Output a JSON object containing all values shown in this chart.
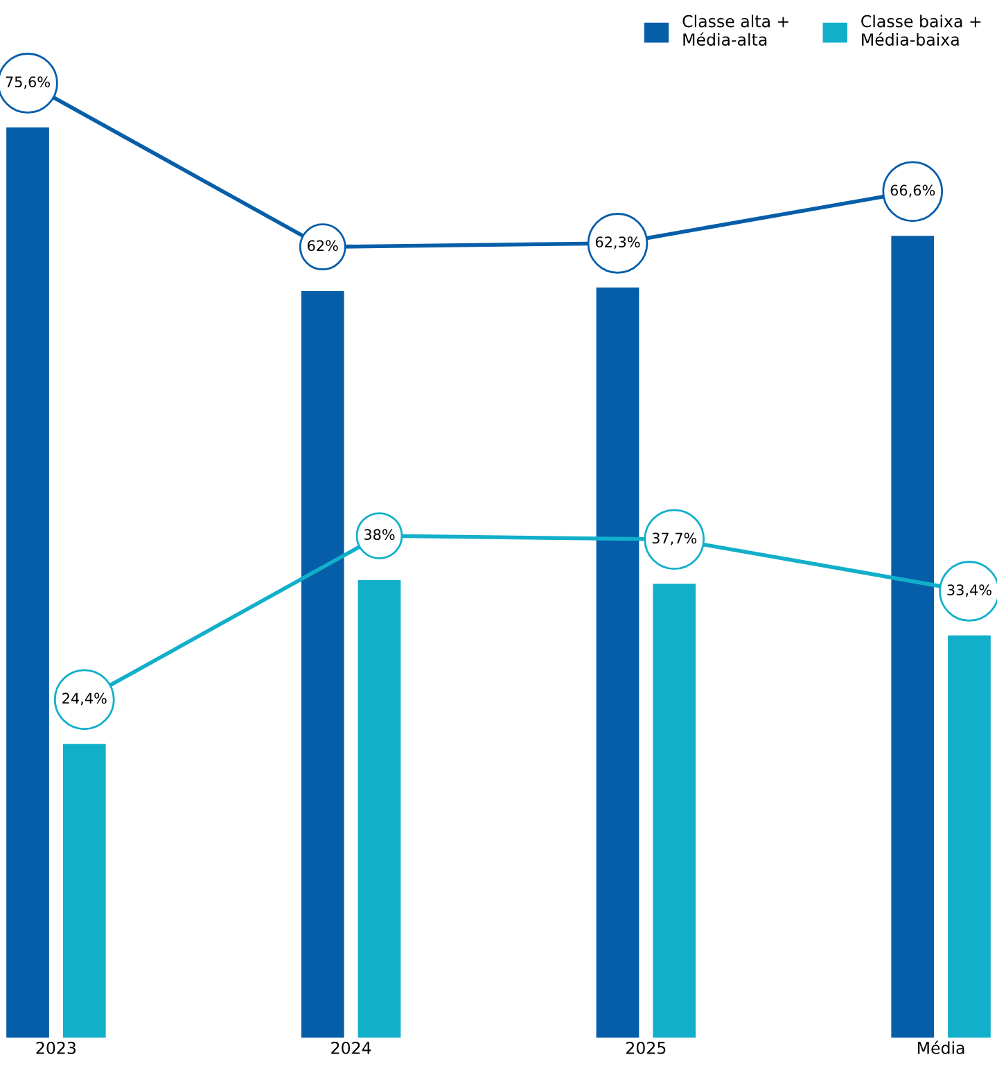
{
  "chart_data": {
    "type": "bar",
    "categories": [
      "2023",
      "2024",
      "2025",
      "Média"
    ],
    "series": [
      {
        "name": "Classe alta +\nMédia-alta",
        "color": "#075ea8",
        "values": [
          75.6,
          62,
          62.3,
          66.6
        ],
        "value_labels": [
          "75,6%",
          "62%",
          "62,3%",
          "66,6%"
        ]
      },
      {
        "name": "Classe baixa +\nMédia-baixa",
        "color": "#12afcb",
        "values": [
          24.4,
          38,
          37.7,
          33.4
        ],
        "value_labels": [
          "24,4%",
          "38%",
          "37,7%",
          "33,4%"
        ]
      }
    ],
    "tick_labels": "x",
    "grid": false,
    "legend": "top right"
  }
}
